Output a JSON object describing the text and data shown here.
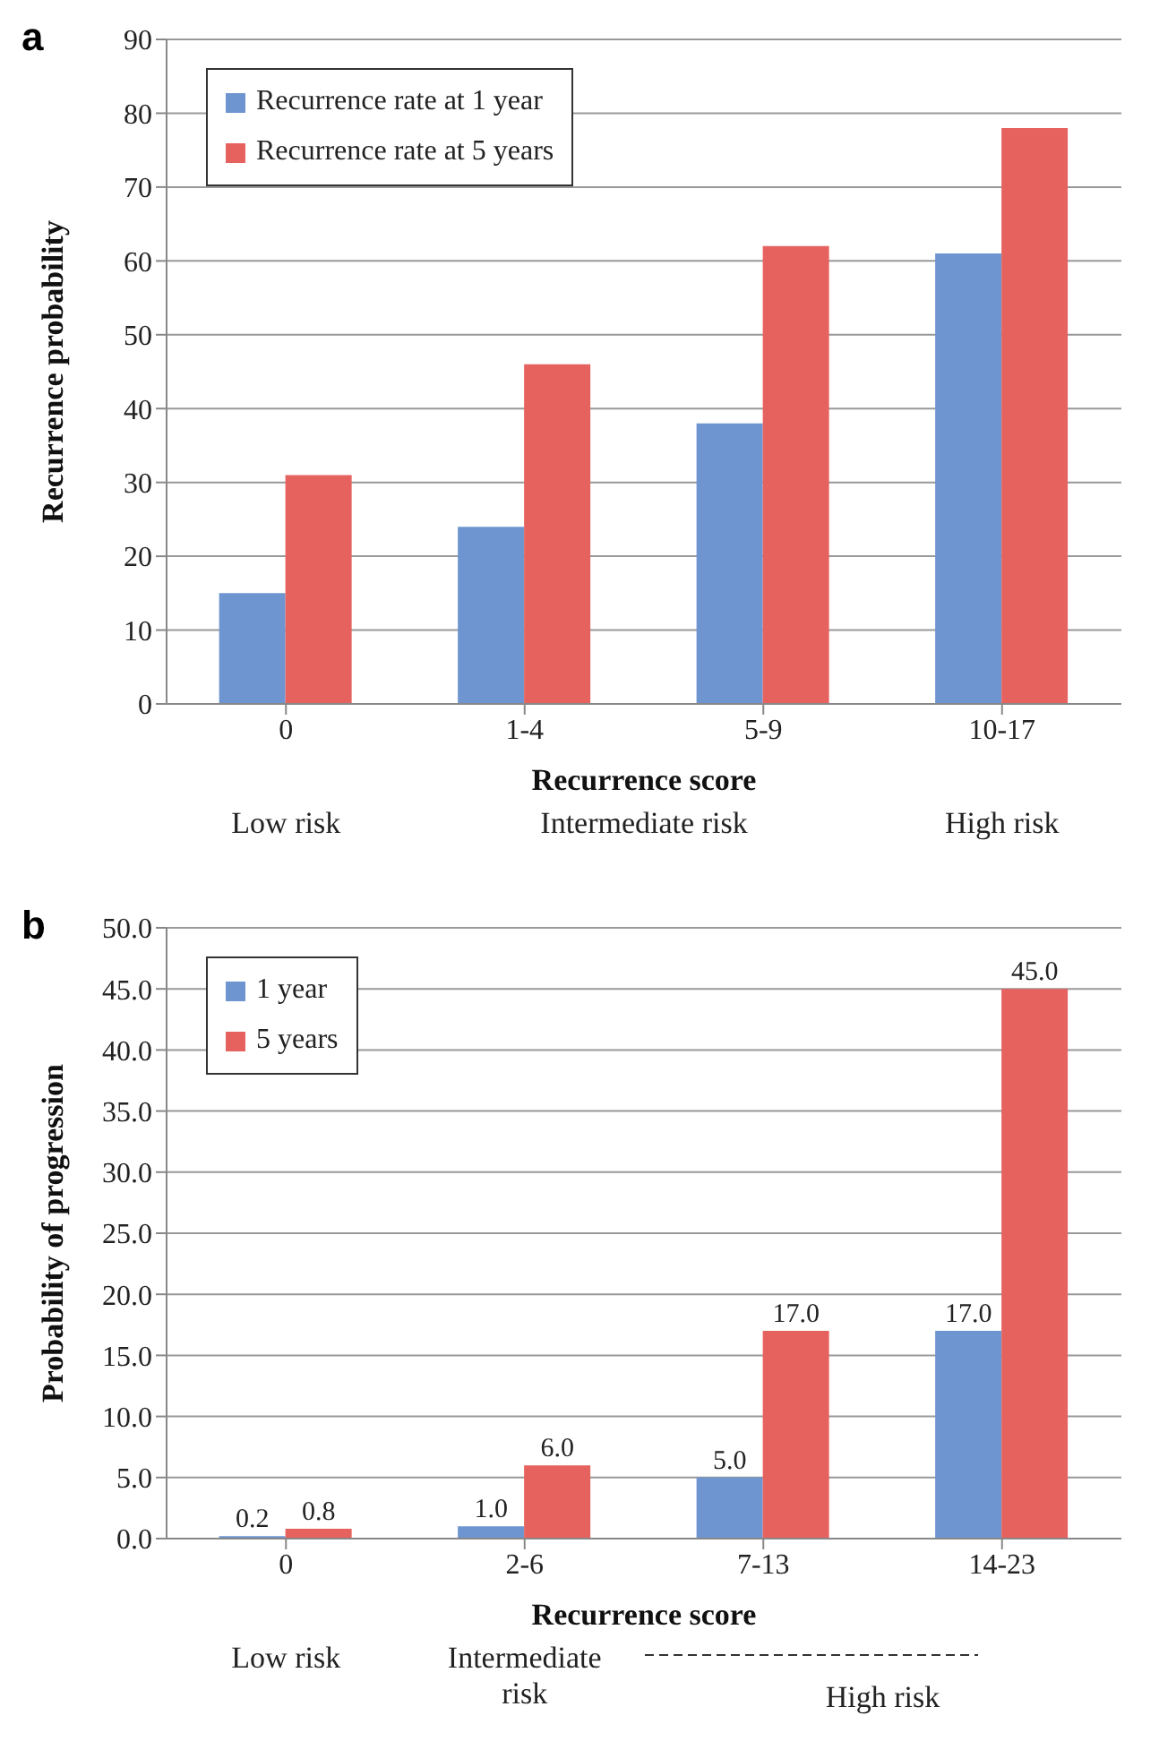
{
  "chart_data": [
    {
      "type": "bar",
      "title": "a",
      "xlabel": "Recurrence score",
      "ylabel": "Recurrence probability",
      "categories": [
        "0",
        "1-4",
        "5-9",
        "10-17"
      ],
      "series": [
        {
          "name": "Recurrence rate at 1 year",
          "color": "#6f95d0",
          "values": [
            15,
            24,
            38,
            61
          ]
        },
        {
          "name": "Recurrence rate at 5 years",
          "color": "#e6625f",
          "values": [
            31,
            46,
            62,
            78
          ]
        }
      ],
      "ylim": [
        0,
        90
      ],
      "yticks": [
        0,
        10,
        20,
        30,
        40,
        50,
        60,
        70,
        80,
        90
      ],
      "grid": "y",
      "legend": "top left",
      "annotations": [
        "Low risk",
        "Intermediate risk",
        "High risk"
      ]
    },
    {
      "type": "bar",
      "title": "b",
      "xlabel": "Recurrence score",
      "ylabel": "Probability of progression",
      "categories": [
        "0",
        "2-6",
        "7-13",
        "14-23"
      ],
      "series": [
        {
          "name": "1 year",
          "color": "#6f95d0",
          "values": [
            0.2,
            1,
            5,
            17
          ],
          "value_labels": [
            "0.2",
            "1.0",
            "5.0",
            "17.0"
          ]
        },
        {
          "name": "5 years",
          "color": "#e6625f",
          "values": [
            0.8,
            6,
            17,
            45
          ],
          "value_labels": [
            "0.8",
            "6.0",
            "17.0",
            "45.0"
          ]
        }
      ],
      "ylim": [
        0,
        50
      ],
      "yticks": [
        {
          "value": 0,
          "label": "0.0"
        },
        {
          "value": 5,
          "label": "5.0"
        },
        {
          "value": 10,
          "label": "10.0"
        },
        {
          "value": 15,
          "label": "15.0"
        },
        {
          "value": 20,
          "label": "20.0"
        },
        {
          "value": 25,
          "label": "25.0"
        },
        {
          "value": 30,
          "label": "30.0"
        },
        {
          "value": 35,
          "label": "35.0"
        },
        {
          "value": 40,
          "label": "40.0"
        },
        {
          "value": 45,
          "label": "45.0"
        },
        {
          "value": 50,
          "label": "50.0"
        }
      ],
      "grid": "y",
      "legend": "top left",
      "annotations": [
        "Low risk",
        "Intermediate risk",
        "High risk"
      ]
    }
  ]
}
